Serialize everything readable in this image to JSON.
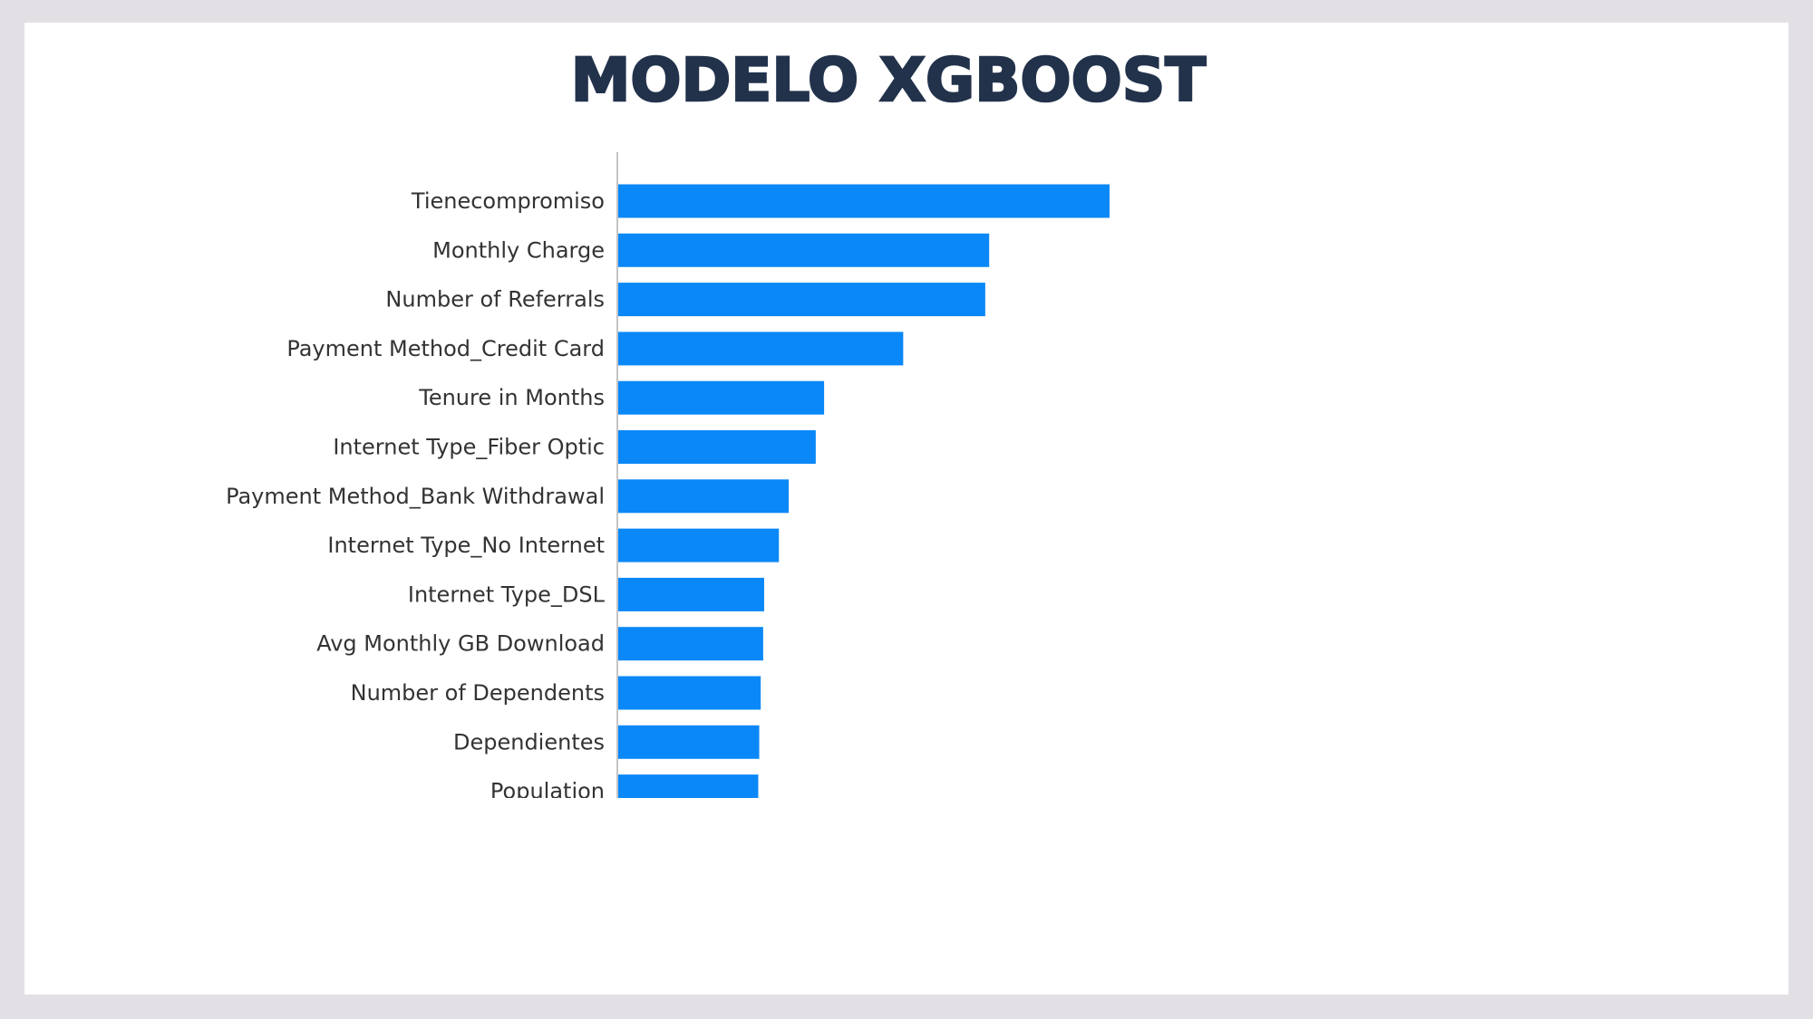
{
  "slide": {
    "title": "MODELO XGBOOST"
  },
  "chart_data": {
    "type": "bar",
    "orientation": "horizontal",
    "title": "",
    "xlabel": "",
    "ylabel": "",
    "categories": [
      "Tienecompromiso",
      "Monthly Charge",
      "Number of Referrals",
      "Payment Method_Credit Card",
      "Tenure in Months",
      "Internet Type_Fiber Optic",
      "Payment Method_Bank Withdrawal",
      "Internet Type_No Internet",
      "Internet Type_DSL",
      "Avg Monthly GB Download",
      "Number of Dependents",
      "Dependientes",
      "Population"
    ],
    "series": [
      {
        "values": [
          1.0,
          0.755,
          0.747,
          0.58,
          0.419,
          0.402,
          0.347,
          0.327,
          0.297,
          0.295,
          0.29,
          0.287,
          0.285
        ]
      }
    ],
    "xlim": [
      0,
      1.9
    ],
    "grid": false,
    "legend": "none",
    "bar_color": "#0a88f7",
    "axis_color": "#b0b0b0"
  }
}
